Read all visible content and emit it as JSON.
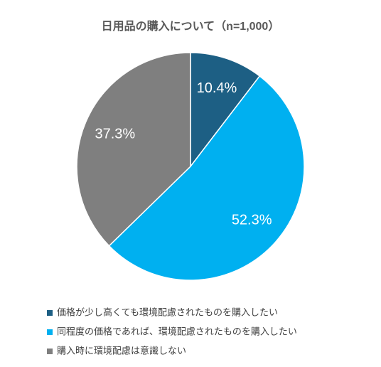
{
  "chart_data": {
    "type": "pie",
    "title": "日用品の購入について（n=1,000）",
    "categories": [
      "価格が少し高くても環境配慮されたものを購入したい",
      "同程度の価格であれば、環境配慮されたものを購入したい",
      "購入時に環境配慮は意識しない"
    ],
    "values": [
      10.4,
      52.3,
      37.3
    ],
    "value_labels": [
      "10.4%",
      "52.3%",
      "37.3%"
    ],
    "colors": [
      "#1d5f84",
      "#00b0f0",
      "#7f7f7f"
    ],
    "legend": "bottom"
  }
}
